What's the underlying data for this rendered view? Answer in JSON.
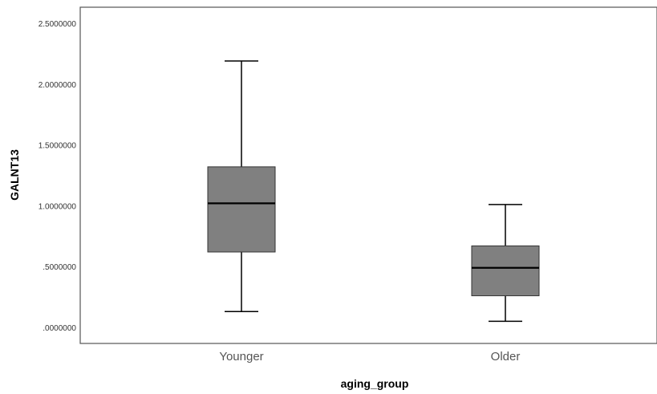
{
  "chart_data": {
    "type": "boxplot",
    "title": "",
    "xlabel": "aging_group",
    "ylabel": "GALNT13",
    "ylim": [
      0,
      2.5
    ],
    "yticks": [
      0,
      0.5,
      1.0,
      1.5,
      2.0,
      2.5
    ],
    "ytick_labels": [
      ".0000000",
      ".5000000",
      "1.0000000",
      "1.5000000",
      "2.0000000",
      "2.5000000"
    ],
    "categories": [
      "Younger",
      "Older"
    ],
    "boxes": [
      {
        "category": "Younger",
        "min": 0.13,
        "q1": 0.62,
        "median": 1.02,
        "q3": 1.32,
        "max": 2.19
      },
      {
        "category": "Older",
        "min": 0.05,
        "q1": 0.26,
        "median": 0.49,
        "q3": 0.67,
        "max": 1.01
      }
    ],
    "grid": false,
    "box_color": "#808080",
    "line_color": "#000000",
    "frame_color": "#555555"
  }
}
